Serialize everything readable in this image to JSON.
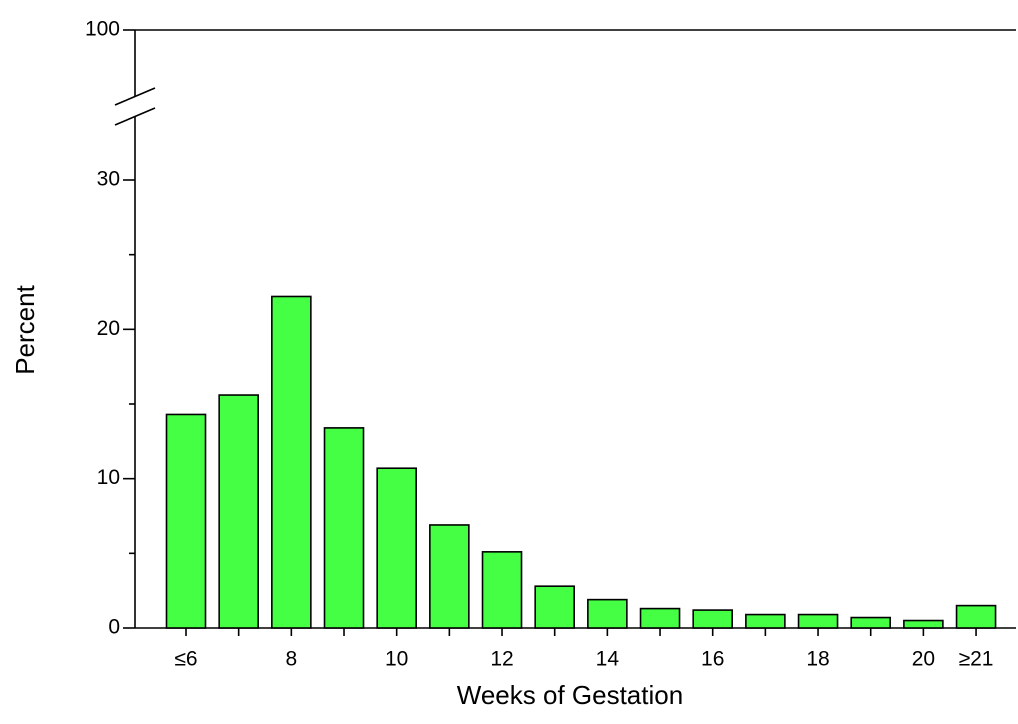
{
  "chart_data": {
    "type": "bar",
    "x_label": "Weeks of Gestation",
    "y_label": "Percent",
    "categories": [
      "≤6",
      null,
      "8",
      null,
      "10",
      null,
      "12",
      null,
      "14",
      null,
      "16",
      null,
      "18",
      null,
      "20",
      "≥21"
    ],
    "values": [
      14.3,
      15.6,
      22.2,
      13.4,
      10.7,
      6.9,
      5.1,
      2.8,
      1.9,
      1.3,
      1.2,
      0.9,
      0.9,
      0.7,
      0.5,
      1.5
    ],
    "color": "#44ff44",
    "ylim": [
      0,
      100
    ],
    "yticks": [
      0,
      10,
      20,
      30,
      100
    ],
    "y_axis_break": true
  }
}
